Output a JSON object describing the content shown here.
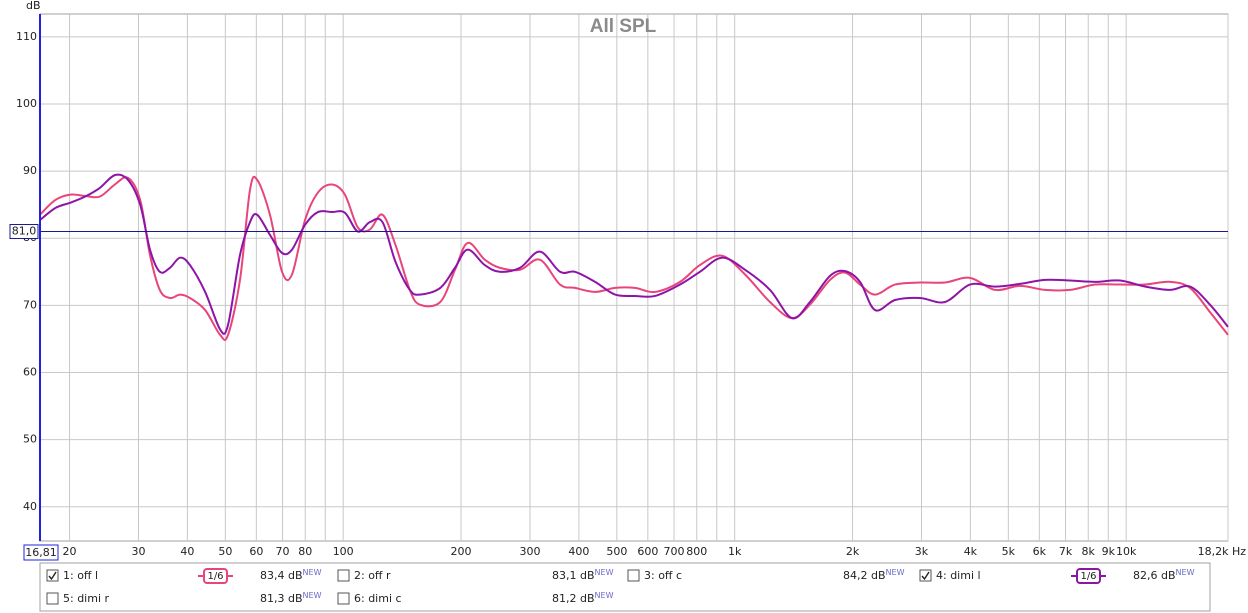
{
  "chart_data": {
    "type": "line",
    "title": "All SPL",
    "y_unit": "dB",
    "xscale": "log",
    "grid": true,
    "xlim": [
      16.81,
      18200
    ],
    "ylim": [
      34.9,
      113.4
    ],
    "yticks": [
      40,
      50,
      60,
      70,
      80,
      90,
      100,
      110
    ],
    "xticks": [
      20,
      30,
      40,
      50,
      60,
      70,
      80,
      100,
      200,
      300,
      400,
      500,
      600,
      700,
      800,
      {
        "value": 1000,
        "label": "1k"
      },
      {
        "value": 2000,
        "label": "2k"
      },
      {
        "value": 3000,
        "label": "3k"
      },
      {
        "value": 4000,
        "label": "4k"
      },
      {
        "value": 5000,
        "label": "5k"
      },
      {
        "value": 6000,
        "label": "6k"
      },
      {
        "value": 7000,
        "label": "7k"
      },
      {
        "value": 8000,
        "label": "8k"
      },
      {
        "value": 9000,
        "label": "9k"
      },
      {
        "value": 10000,
        "label": "10k"
      },
      {
        "value": 18200,
        "label": "18,2k Hz"
      }
    ],
    "xminor": [
      90,
      900
    ],
    "cursor": {
      "y": 81.0,
      "y_label": "81,0",
      "x": 16.81,
      "x_label": "16,81",
      "color": "#1a1a8c"
    },
    "x": [
      16.8,
      18.4,
      20.1,
      21.9,
      23.9,
      26.1,
      28.2,
      30.3,
      32.1,
      34.0,
      36.1,
      38.3,
      40.6,
      44.4,
      48.5,
      50.8,
      54.5,
      57.8,
      60.3,
      65.0,
      69.8,
      74.0,
      79.9,
      86.2,
      93.6,
      101,
      109,
      117,
      126,
      136,
      148,
      157,
      177,
      193,
      208,
      230,
      251,
      283,
      318,
      358,
      391,
      440,
      495,
      556,
      626,
      725,
      815,
      928,
      1063,
      1231,
      1400,
      1557,
      1752,
      1913,
      2090,
      2283,
      2569,
      2974,
      3444,
      3991,
      4623,
      5354,
      6201,
      7186,
      8326,
      9642,
      11170,
      12940,
      14560,
      16370,
      18200
    ],
    "series": [
      {
        "name": "1: off l",
        "color": "#e8457a",
        "checked": true,
        "smoothing": "1/6",
        "level": "83,4 dB",
        "badge": "NEW",
        "values": [
          83.5,
          85.7,
          86.5,
          86.3,
          86.2,
          88.0,
          89.0,
          85.7,
          77.5,
          72.3,
          71.1,
          71.6,
          71.1,
          69.3,
          65.6,
          65.6,
          73.8,
          87.2,
          88.7,
          83.5,
          75.0,
          74.6,
          82.7,
          86.8,
          88.0,
          86.5,
          81.6,
          81.3,
          83.5,
          79.0,
          72.3,
          70.1,
          70.5,
          75.3,
          79.3,
          76.8,
          75.6,
          75.3,
          76.8,
          73.1,
          72.6,
          72.0,
          72.6,
          72.6,
          72.0,
          73.5,
          76.0,
          77.4,
          74.6,
          70.5,
          68.1,
          70.1,
          73.8,
          74.9,
          73.1,
          71.6,
          73.1,
          73.4,
          73.4,
          74.1,
          72.3,
          72.9,
          72.3,
          72.3,
          73.1,
          73.1,
          73.1,
          73.5,
          72.6,
          69.0,
          65.6
        ]
      },
      {
        "name": "2: off r",
        "color": "#2a8a2a",
        "checked": false,
        "level": "83,1 dB",
        "badge": "NEW"
      },
      {
        "name": "3: off c",
        "color": "#3838b8",
        "checked": false,
        "level": "84,2 dB",
        "badge": "NEW"
      },
      {
        "name": "4: dimi l",
        "color": "#8e14a8",
        "checked": true,
        "smoothing": "1/6",
        "level": "82,6 dB",
        "badge": "NEW",
        "values": [
          82.7,
          84.5,
          85.3,
          86.2,
          87.5,
          89.4,
          88.7,
          85.0,
          78.3,
          75.0,
          75.6,
          77.1,
          76.0,
          72.0,
          66.4,
          67.1,
          77.5,
          82.4,
          83.5,
          80.5,
          77.8,
          78.3,
          82.0,
          83.9,
          83.9,
          83.8,
          81.0,
          82.4,
          82.4,
          76.5,
          72.3,
          71.6,
          72.6,
          75.6,
          78.3,
          76.0,
          75.0,
          75.6,
          78.0,
          75.0,
          75.0,
          73.5,
          71.6,
          71.4,
          71.4,
          73.1,
          75.0,
          77.1,
          75.3,
          72.3,
          68.1,
          70.5,
          74.4,
          75.1,
          73.5,
          69.3,
          70.8,
          71.1,
          70.5,
          73.1,
          72.8,
          73.2,
          73.8,
          73.7,
          73.5,
          73.7,
          72.8,
          72.3,
          72.8,
          70.1,
          66.8
        ]
      },
      {
        "name": "5: dimi r",
        "color": "#108080",
        "checked": false,
        "level": "81,3 dB",
        "badge": "NEW"
      },
      {
        "name": "6: dimi c",
        "color": "#b08000",
        "checked": false,
        "level": "81,2 dB",
        "badge": "NEW"
      }
    ]
  }
}
